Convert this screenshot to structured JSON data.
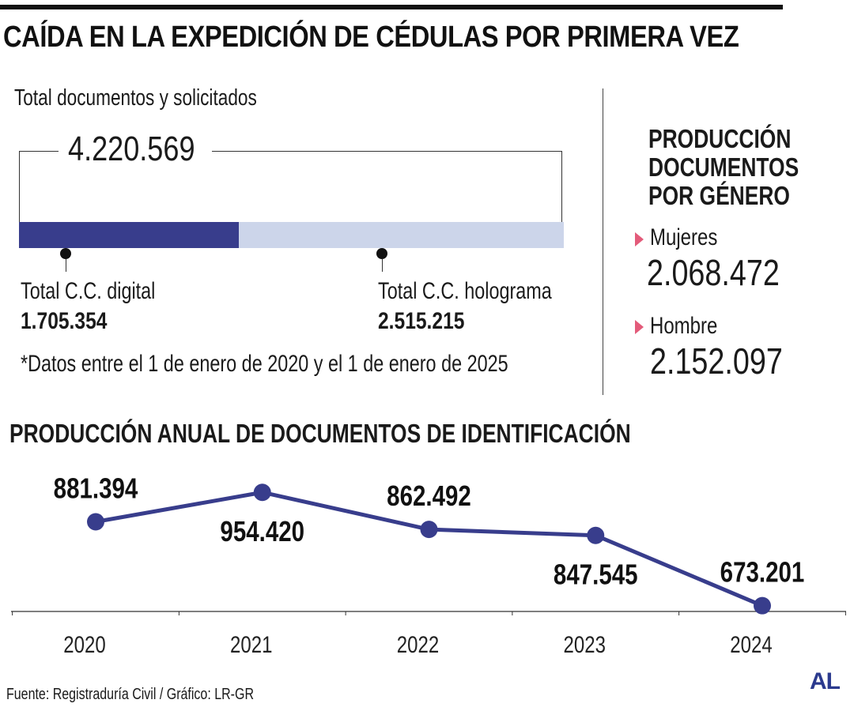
{
  "title": "CAÍDA EN LA EXPEDICIÓN DE CÉDULAS POR PRIMERA VEZ",
  "summary": {
    "total_label": "Total documentos y solicitados",
    "total_value": "4.220.569",
    "digital": {
      "label": "Total C.C. digital",
      "value": "1.705.354",
      "amount": 1705354
    },
    "holograma": {
      "label": "Total C.C. holograma",
      "value": "2.515.215",
      "amount": 2515215
    },
    "total_amount": 4220569,
    "note": "*Datos entre el 1 de enero de 2020 y el 1 de enero de 2025"
  },
  "gender": {
    "title_lines": [
      "PRODUCCIÓN",
      "DOCUMENTOS",
      "POR GÉNERO"
    ],
    "women": {
      "label": "Mujeres",
      "value": "2.068.472"
    },
    "men": {
      "label": "Hombre",
      "value": "2.152.097"
    }
  },
  "annual_title": "PRODUCCIÓN ANUAL DE DOCUMENTOS DE IDENTIFICACIÓN",
  "chart_data": {
    "type": "line",
    "title": "PRODUCCIÓN ANUAL DE DOCUMENTOS DE IDENTIFICACIÓN",
    "categories": [
      "2020",
      "2021",
      "2022",
      "2023",
      "2024"
    ],
    "series": [
      {
        "name": "Documentos",
        "values": [
          881394,
          954420,
          862492,
          847545,
          673201
        ]
      }
    ],
    "labels": [
      "881.394",
      "954.420",
      "862.492",
      "847.545",
      "673.201"
    ],
    "label_positions": [
      "above",
      "below",
      "above",
      "below",
      "above"
    ],
    "xlabel": "",
    "ylabel": "",
    "ylim": [
      600000,
      1000000
    ]
  },
  "colors": {
    "line": "#383d8c",
    "bar_digital": "#383d8c",
    "bar_track": "#ccd5ea",
    "marker": "#e35b7a",
    "logo": "#2b3a8e"
  },
  "footer": "Fuente: Registraduría Civil / Gráfico: LR-GR",
  "logo": "AL"
}
